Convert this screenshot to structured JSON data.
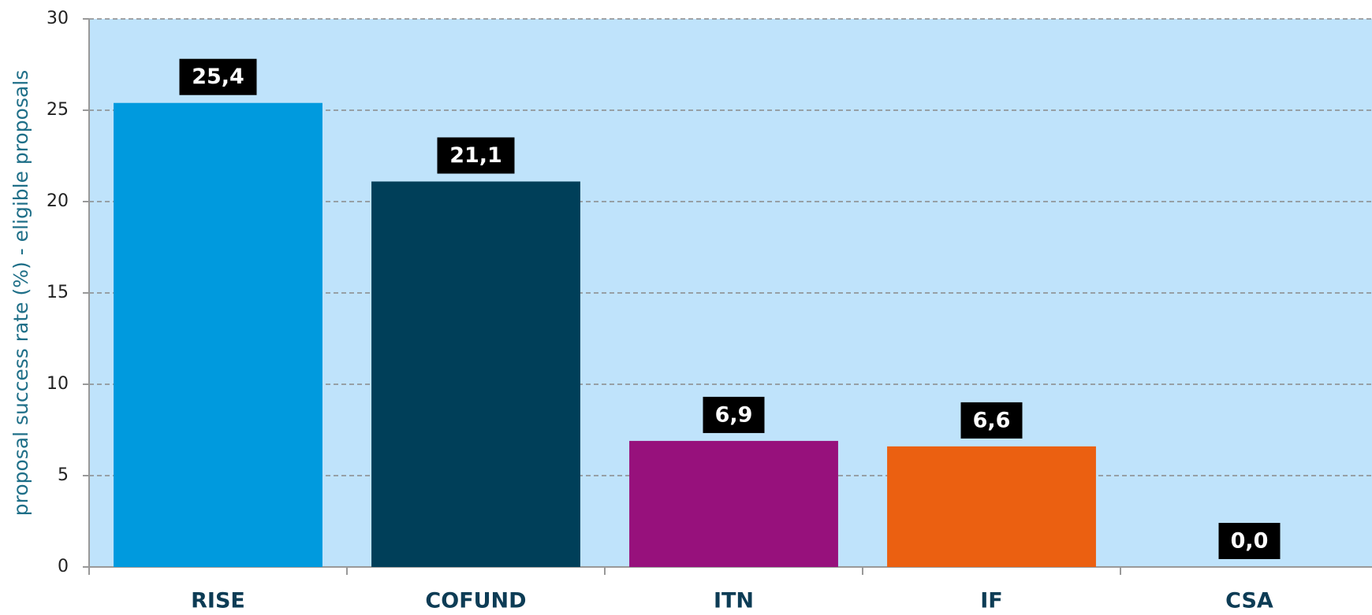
{
  "chart_data": {
    "type": "bar",
    "y_label": "proposal success rate (%) - eligible proposals",
    "categories": [
      "RISE",
      "COFUND",
      "ITN",
      "IF",
      "CSA"
    ],
    "values": [
      25.4,
      21.1,
      6.9,
      6.6,
      0.0
    ],
    "value_labels": [
      "25,4",
      "21,1",
      "6,9",
      "6,6",
      "0,0"
    ],
    "colors": [
      "#009ade",
      "#003f59",
      "#97117c",
      "#eb6011",
      "#9ac2d8"
    ],
    "ylim": [
      0,
      30
    ],
    "yticks": [
      0,
      5,
      10,
      15,
      20,
      25,
      30
    ],
    "grid": true
  }
}
